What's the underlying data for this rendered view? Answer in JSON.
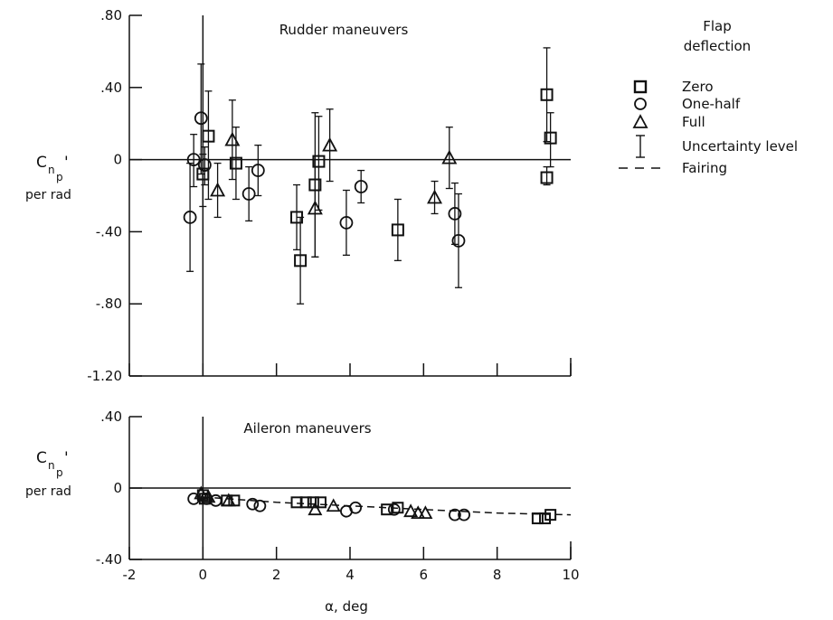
{
  "chart_data": [
    {
      "type": "scatter",
      "title": "Rudder maneuvers",
      "ylabel": {
        "main": "C",
        "sub": "n",
        "subsub": "p",
        "prime": "'",
        "unit": "per rad"
      },
      "xlim": [
        -2,
        10
      ],
      "ylim": [
        -1.2,
        0.8
      ],
      "ytick_labels": [
        ".80",
        ".40",
        "0",
        "-.40",
        "-.80",
        "-1.20"
      ],
      "ytick_values": [
        0.8,
        0.4,
        0,
        -0.4,
        -0.8,
        -1.2
      ],
      "xtick_values": [
        -2,
        0,
        2,
        4,
        6,
        8,
        10
      ],
      "series": [
        {
          "name": "Zero",
          "marker": "square",
          "points": [
            {
              "x": 0.15,
              "y": 0.13,
              "lo": -0.22,
              "hi": 0.38
            },
            {
              "x": 0.0,
              "y": -0.08,
              "lo": -0.26,
              "hi": 0.03
            },
            {
              "x": 0.9,
              "y": -0.02,
              "lo": -0.22,
              "hi": 0.18
            },
            {
              "x": 2.55,
              "y": -0.32,
              "lo": -0.5,
              "hi": -0.14
            },
            {
              "x": 2.65,
              "y": -0.56,
              "lo": -0.8,
              "hi": -0.32
            },
            {
              "x": 3.05,
              "y": -0.14,
              "lo": -0.54,
              "hi": 0.26
            },
            {
              "x": 3.15,
              "y": -0.01,
              "lo": -0.28,
              "hi": 0.24
            },
            {
              "x": 5.3,
              "y": -0.39,
              "lo": -0.56,
              "hi": -0.22
            },
            {
              "x": 9.35,
              "y": 0.36,
              "lo": 0.1,
              "hi": 0.62
            },
            {
              "x": 9.45,
              "y": 0.12,
              "lo": -0.04,
              "hi": 0.26
            },
            {
              "x": 9.35,
              "y": -0.1,
              "lo": -0.14,
              "hi": -0.04
            }
          ]
        },
        {
          "name": "One-half",
          "marker": "circle",
          "points": [
            {
              "x": -0.35,
              "y": -0.32,
              "lo": -0.62,
              "hi": -0.02
            },
            {
              "x": -0.25,
              "y": 0.0,
              "lo": -0.15,
              "hi": 0.14
            },
            {
              "x": -0.05,
              "y": 0.23,
              "lo": -0.08,
              "hi": 0.53
            },
            {
              "x": 0.05,
              "y": -0.03,
              "lo": -0.14,
              "hi": 0.07
            },
            {
              "x": 1.25,
              "y": -0.19,
              "lo": -0.34,
              "hi": -0.04
            },
            {
              "x": 1.5,
              "y": -0.06,
              "lo": -0.2,
              "hi": 0.08
            },
            {
              "x": 3.9,
              "y": -0.35,
              "lo": -0.53,
              "hi": -0.17
            },
            {
              "x": 4.3,
              "y": -0.15,
              "lo": -0.24,
              "hi": -0.06
            },
            {
              "x": 6.85,
              "y": -0.3,
              "lo": -0.47,
              "hi": -0.13
            },
            {
              "x": 6.95,
              "y": -0.45,
              "lo": -0.71,
              "hi": -0.19
            }
          ]
        },
        {
          "name": "Full",
          "marker": "triangle",
          "points": [
            {
              "x": 0.4,
              "y": -0.17,
              "lo": -0.32,
              "hi": -0.02
            },
            {
              "x": 0.8,
              "y": 0.11,
              "lo": -0.11,
              "hi": 0.33
            },
            {
              "x": 3.05,
              "y": -0.27,
              "lo": -0.54,
              "hi": 0.0
            },
            {
              "x": 3.45,
              "y": 0.08,
              "lo": -0.12,
              "hi": 0.28
            },
            {
              "x": 6.3,
              "y": -0.21,
              "lo": -0.3,
              "hi": -0.12
            },
            {
              "x": 6.7,
              "y": 0.01,
              "lo": -0.16,
              "hi": 0.18
            }
          ]
        }
      ],
      "reference_line": {
        "y": 0
      },
      "vertical_line": {
        "x": 0
      }
    },
    {
      "type": "scatter",
      "title": "Aileron maneuvers",
      "ylabel": {
        "main": "C",
        "sub": "n",
        "subsub": "p",
        "prime": "'",
        "unit": "per rad"
      },
      "xlabel": "α, deg",
      "xlim": [
        -2,
        10
      ],
      "ylim": [
        -0.4,
        0.4
      ],
      "ytick_labels": [
        ".40",
        "0",
        "-.40"
      ],
      "ytick_values": [
        0.4,
        0,
        -0.4
      ],
      "xtick_labels": [
        "-2",
        "0",
        "2",
        "4",
        "6",
        "8",
        "10"
      ],
      "xtick_values": [
        -2,
        0,
        2,
        4,
        6,
        8,
        10
      ],
      "series": [
        {
          "name": "Zero",
          "marker": "square",
          "points": [
            {
              "x": 0.0,
              "y": -0.04
            },
            {
              "x": 0.05,
              "y": -0.06
            },
            {
              "x": 0.65,
              "y": -0.07
            },
            {
              "x": 0.85,
              "y": -0.07
            },
            {
              "x": 2.55,
              "y": -0.08
            },
            {
              "x": 2.8,
              "y": -0.08
            },
            {
              "x": 3.0,
              "y": -0.08
            },
            {
              "x": 3.2,
              "y": -0.08
            },
            {
              "x": 5.0,
              "y": -0.12
            },
            {
              "x": 5.3,
              "y": -0.11
            },
            {
              "x": 9.1,
              "y": -0.17
            },
            {
              "x": 9.3,
              "y": -0.17
            },
            {
              "x": 9.45,
              "y": -0.15
            }
          ]
        },
        {
          "name": "One-half",
          "marker": "circle",
          "points": [
            {
              "x": -0.25,
              "y": -0.06
            },
            {
              "x": 0.1,
              "y": -0.06
            },
            {
              "x": 0.35,
              "y": -0.07
            },
            {
              "x": 1.35,
              "y": -0.09
            },
            {
              "x": 1.55,
              "y": -0.1
            },
            {
              "x": 3.9,
              "y": -0.13
            },
            {
              "x": 4.15,
              "y": -0.11
            },
            {
              "x": 5.2,
              "y": -0.12
            },
            {
              "x": 6.85,
              "y": -0.15
            },
            {
              "x": 7.1,
              "y": -0.15
            }
          ]
        },
        {
          "name": "Full",
          "marker": "triangle",
          "points": [
            {
              "x": -0.05,
              "y": -0.03
            },
            {
              "x": 0.15,
              "y": -0.05
            },
            {
              "x": 0.7,
              "y": -0.07
            },
            {
              "x": 3.05,
              "y": -0.12
            },
            {
              "x": 3.55,
              "y": -0.1
            },
            {
              "x": 5.65,
              "y": -0.13
            },
            {
              "x": 5.85,
              "y": -0.14
            },
            {
              "x": 6.05,
              "y": -0.14
            }
          ]
        }
      ],
      "fairing": [
        [
          0,
          -0.05
        ],
        [
          2,
          -0.08
        ],
        [
          4,
          -0.1
        ],
        [
          6,
          -0.12
        ],
        [
          8,
          -0.14
        ],
        [
          10,
          -0.15
        ]
      ],
      "reference_line": {
        "y": 0
      },
      "vertical_line": {
        "x": 0
      }
    }
  ],
  "legend": {
    "title_line1": "Flap",
    "title_line2": "deflection",
    "items": [
      {
        "key": "zero",
        "marker": "square",
        "label": "Zero"
      },
      {
        "key": "one-half",
        "marker": "circle",
        "label": "One-half"
      },
      {
        "key": "full",
        "marker": "triangle",
        "label": "Full"
      },
      {
        "key": "uncertainty",
        "marker": "errorbar",
        "label": "Uncertainty level"
      },
      {
        "key": "fairing",
        "marker": "dashed",
        "label": "Fairing"
      }
    ]
  }
}
